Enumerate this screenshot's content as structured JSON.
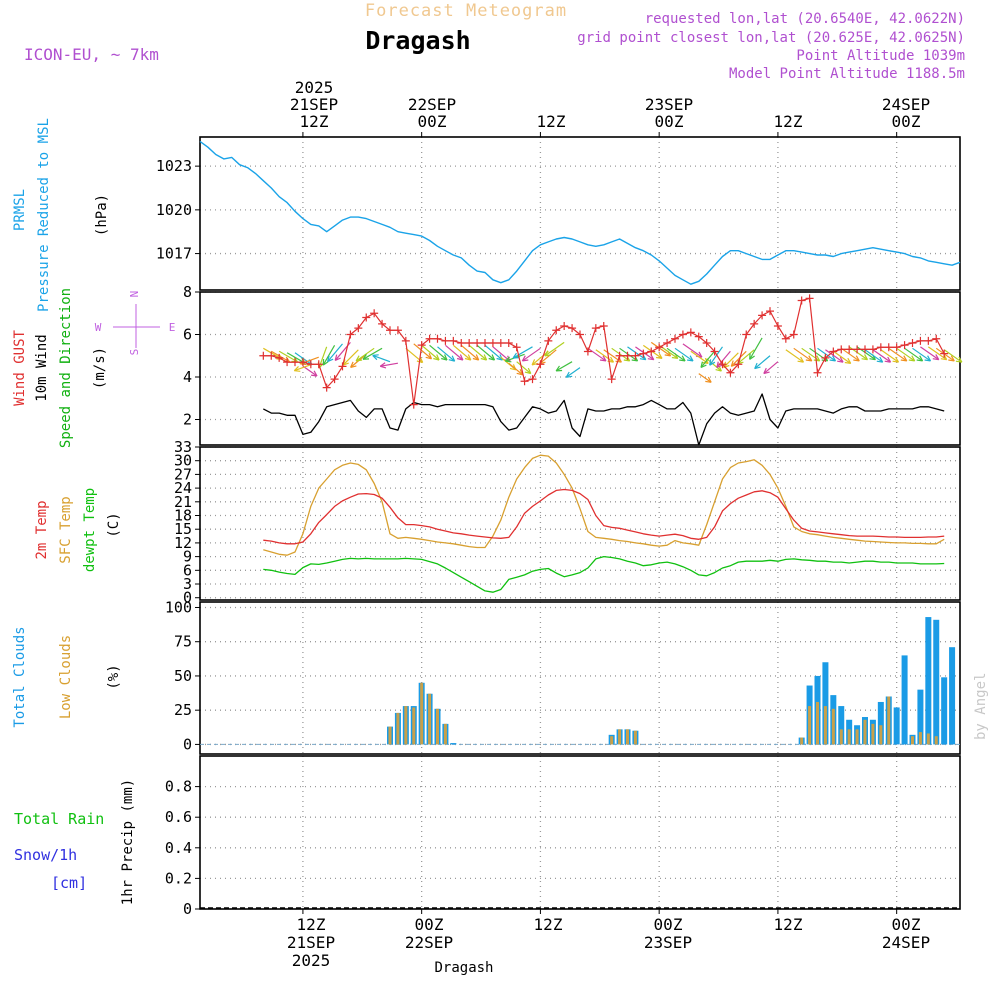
{
  "header": {
    "product": "Forecast Meteogram",
    "place": "Dragash",
    "model": "ICON-EU, ~ 7km",
    "requested": "requested lon,lat (20.6540E, 42.0622N)",
    "grid": "grid point closest lon,lat (20.625E, 42.0625N)",
    "point_alt": "Point Altitude 1039m",
    "model_alt": "Model Point Altitude 1188.5m",
    "watermark": "by Angel",
    "footer_place": "Dragash"
  },
  "colors": {
    "pressure": "#1aa3e8",
    "gust": "#e03030",
    "wind": "#000000",
    "wind_label": "#10b010",
    "temp2m": "#e03030",
    "sfc": "#d8a030",
    "dew": "#10c010",
    "cloud_total": "#1a9be6",
    "cloud_low": "#c8a04a",
    "rain": "#10c010",
    "snow": "#3030e0",
    "title": "#f0c890",
    "meta": "#b050d0",
    "compass": "#c060e0"
  },
  "chart_data": {
    "type": "line",
    "time_axis": {
      "unit": "hours since 2025-09-21 00Z",
      "range": [
        2,
        98
      ],
      "top_ticks": [
        {
          "hour": 15,
          "lines": [
            "2025",
            "21SEP",
            "12Z"
          ]
        },
        {
          "hour": 30,
          "lines": [
            "22SEP",
            "00Z"
          ]
        },
        {
          "hour": 45,
          "lines": [
            "12Z"
          ]
        },
        {
          "hour": 60,
          "lines": [
            "23SEP",
            "00Z"
          ]
        },
        {
          "hour": 75,
          "lines": [
            "12Z"
          ]
        },
        {
          "hour": 90,
          "lines": [
            "24SEP",
            "00Z"
          ]
        }
      ],
      "bottom_ticks": [
        {
          "hour": 15,
          "lines": [
            "12Z",
            "21SEP",
            "2025"
          ]
        },
        {
          "hour": 30,
          "lines": [
            "00Z",
            "22SEP"
          ]
        },
        {
          "hour": 45,
          "lines": [
            "12Z"
          ]
        },
        {
          "hour": 60,
          "lines": [
            "00Z",
            "23SEP"
          ]
        },
        {
          "hour": 75,
          "lines": [
            "12Z"
          ]
        },
        {
          "hour": 90,
          "lines": [
            "00Z",
            "24SEP"
          ]
        }
      ]
    },
    "pressure": {
      "labels": [
        "PRMSL",
        "Pressure Reduced to MSL"
      ],
      "unit": "(hPa)",
      "ylim": [
        1014.5,
        1025
      ],
      "yticks": [
        1017,
        1020,
        1023
      ],
      "hours": [
        2,
        3,
        4,
        5,
        6,
        7,
        8,
        9,
        10,
        11,
        12,
        13,
        14,
        15,
        16,
        17,
        18,
        19,
        20,
        21,
        22,
        23,
        24,
        25,
        26,
        27,
        28,
        29,
        30,
        31,
        32,
        33,
        34,
        35,
        36,
        37,
        38,
        39,
        40,
        41,
        42,
        43,
        44,
        45,
        46,
        47,
        48,
        49,
        50,
        51,
        52,
        53,
        54,
        55,
        56,
        57,
        58,
        59,
        60,
        61,
        62,
        63,
        64,
        65,
        66,
        67,
        68,
        69,
        70,
        71,
        72,
        73,
        74,
        75,
        76,
        77,
        78,
        79,
        80,
        81,
        82,
        83,
        84,
        85,
        86,
        87,
        88,
        89,
        90,
        91,
        92,
        93,
        94,
        95,
        96,
        97,
        98
      ],
      "values": [
        1024.7,
        1024.3,
        1023.8,
        1023.5,
        1023.6,
        1023.1,
        1022.9,
        1022.5,
        1022.0,
        1021.5,
        1020.9,
        1020.5,
        1019.9,
        1019.4,
        1019.0,
        1018.9,
        1018.5,
        1018.9,
        1019.3,
        1019.5,
        1019.5,
        1019.4,
        1019.2,
        1019.0,
        1018.8,
        1018.5,
        1018.4,
        1018.3,
        1018.2,
        1017.9,
        1017.5,
        1017.2,
        1016.9,
        1016.7,
        1016.2,
        1015.8,
        1015.7,
        1015.2,
        1015.0,
        1015.2,
        1015.8,
        1016.5,
        1017.2,
        1017.6,
        1017.8,
        1018.0,
        1018.1,
        1018.0,
        1017.8,
        1017.6,
        1017.5,
        1017.6,
        1017.8,
        1018.0,
        1017.7,
        1017.4,
        1017.2,
        1016.9,
        1016.5,
        1016.0,
        1015.5,
        1015.2,
        1014.9,
        1015.1,
        1015.6,
        1016.2,
        1016.8,
        1017.2,
        1017.2,
        1017.0,
        1016.8,
        1016.6,
        1016.6,
        1016.9,
        1017.2,
        1017.2,
        1017.1,
        1017.0,
        1016.9,
        1016.9,
        1016.8,
        1017.0,
        1017.1,
        1017.2,
        1017.3,
        1017.4,
        1017.3,
        1017.2,
        1017.1,
        1017.0,
        1016.8,
        1016.7,
        1016.5,
        1016.4,
        1016.3,
        1016.2,
        1016.4
      ]
    },
    "wind": {
      "labels": [
        "Wind GUST",
        "10m Wind",
        "Speed and Direction"
      ],
      "unit": "(m/s)",
      "ylim": [
        0.8,
        8
      ],
      "yticks": [
        2,
        4,
        6,
        8
      ],
      "compass": [
        "N",
        "W",
        "E",
        "S"
      ],
      "gust": [
        5.0,
        5.0,
        4.9,
        4.7,
        4.7,
        4.7,
        4.6,
        4.6,
        3.5,
        3.9,
        4.5,
        6.0,
        6.3,
        6.8,
        7.0,
        6.5,
        6.2,
        6.2,
        5.7,
        2.7,
        5.5,
        5.8,
        5.8,
        5.7,
        5.7,
        5.6,
        5.6,
        5.6,
        5.6,
        5.6,
        5.6,
        5.6,
        5.4,
        3.8,
        3.9,
        4.6,
        5.7,
        6.2,
        6.4,
        6.3,
        6.0,
        5.2,
        6.3,
        6.4,
        3.9,
        5.0,
        5.0,
        5.0,
        5.1,
        5.2,
        5.4,
        5.6,
        5.8,
        6.0,
        6.1,
        5.9,
        5.6,
        5.2,
        4.6,
        4.2,
        4.6,
        6.0,
        6.5,
        6.9,
        7.1,
        6.4,
        5.8,
        6.0,
        7.6,
        7.7,
        4.2,
        4.9,
        5.2,
        5.3,
        5.3,
        5.3,
        5.3,
        5.3,
        5.4,
        5.4,
        5.4,
        5.5,
        5.6,
        5.7,
        5.7,
        5.8,
        5.1
      ],
      "speed": [
        2.5,
        2.3,
        2.3,
        2.2,
        2.2,
        1.3,
        1.4,
        1.9,
        2.6,
        2.7,
        2.8,
        2.9,
        2.4,
        2.1,
        2.5,
        2.5,
        1.6,
        1.5,
        2.5,
        2.8,
        2.7,
        2.7,
        2.6,
        2.7,
        2.7,
        2.7,
        2.7,
        2.7,
        2.7,
        2.6,
        1.9,
        1.5,
        1.6,
        2.1,
        2.6,
        2.5,
        2.3,
        2.4,
        2.9,
        1.6,
        1.2,
        2.5,
        2.4,
        2.4,
        2.5,
        2.5,
        2.6,
        2.6,
        2.7,
        2.9,
        2.7,
        2.5,
        2.5,
        2.8,
        2.3,
        0.8,
        1.8,
        2.3,
        2.6,
        2.3,
        2.2,
        2.3,
        2.4,
        3.2,
        2.0,
        1.6,
        2.4,
        2.5,
        2.5,
        2.5,
        2.5,
        2.4,
        2.3,
        2.5,
        2.6,
        2.6,
        2.4,
        2.4,
        2.4,
        2.5,
        2.5,
        2.5,
        2.5,
        2.6,
        2.6,
        2.5,
        2.4
      ],
      "arrow_angle_deg": [
        -30,
        -30,
        -30,
        -30,
        -35,
        -35,
        200,
        200,
        250,
        240,
        230,
        230,
        225,
        220,
        215,
        210,
        160,
        190,
        -40,
        -40,
        -40,
        -40,
        -40,
        -40,
        -40,
        -40,
        -40,
        -40,
        -40,
        -40,
        -40,
        -40,
        -40,
        200,
        210,
        215,
        220,
        220,
        215,
        210,
        215,
        -35,
        -35,
        -35,
        -35,
        -35,
        -35,
        -35,
        -35,
        -35,
        -35,
        -35,
        -35,
        -35,
        -35,
        -35,
        -40,
        230,
        235,
        230,
        225,
        225,
        220,
        240,
        220,
        220,
        -35,
        -35,
        -35,
        -35,
        -35,
        -35,
        -35,
        -35,
        -35,
        -35,
        -35,
        -35,
        -35,
        -35,
        -35,
        -35,
        -35,
        -35,
        -35,
        -35,
        -35
      ]
    },
    "temperature": {
      "labels": [
        "2m Temp",
        "SFC Temp",
        "dewpt Temp"
      ],
      "unit": "(C)",
      "ylim": [
        -0.5,
        33
      ],
      "yticks": [
        0,
        3,
        6,
        9,
        12,
        15,
        18,
        21,
        24,
        27,
        30,
        33
      ],
      "t2m": [
        12.6,
        12.4,
        12.0,
        11.8,
        11.8,
        12.2,
        14.0,
        16.5,
        18.2,
        20.0,
        21.2,
        22.0,
        22.7,
        22.8,
        22.6,
        21.8,
        19.8,
        17.5,
        16.0,
        16.0,
        15.8,
        15.5,
        15.0,
        14.6,
        14.2,
        14.0,
        13.7,
        13.5,
        13.3,
        13.1,
        13.0,
        13.2,
        15.5,
        18.5,
        20.0,
        21.2,
        22.5,
        23.5,
        23.7,
        23.5,
        22.8,
        21.5,
        18.0,
        15.8,
        15.4,
        15.2,
        14.8,
        14.4,
        14.0,
        13.7,
        13.5,
        13.7,
        13.9,
        13.6,
        13.0,
        12.8,
        13.2,
        15.5,
        19.0,
        20.6,
        21.8,
        22.5,
        23.2,
        23.4,
        23.0,
        22.0,
        19.5,
        17.0,
        15.2,
        14.6,
        14.4,
        14.2,
        14.0,
        13.8,
        13.6,
        13.5,
        13.5,
        13.5,
        13.4,
        13.3,
        13.3,
        13.2,
        13.2,
        13.2,
        13.3,
        13.3,
        13.5
      ],
      "sfc": [
        10.5,
        10.0,
        9.5,
        9.3,
        10.0,
        14.0,
        20.0,
        24.0,
        26.0,
        28.0,
        29.0,
        29.5,
        29.2,
        28.0,
        25.0,
        21.0,
        14.0,
        13.0,
        13.2,
        13.0,
        12.8,
        12.5,
        12.2,
        12.0,
        11.8,
        11.5,
        11.2,
        11.0,
        11.0,
        13.5,
        17.0,
        22.0,
        26.0,
        28.5,
        30.5,
        31.2,
        31.0,
        29.5,
        27.0,
        24.0,
        19.5,
        14.5,
        13.2,
        13.0,
        12.8,
        12.5,
        12.3,
        12.0,
        11.8,
        11.5,
        11.3,
        11.5,
        12.5,
        12.0,
        11.8,
        11.5,
        16.0,
        21.0,
        26.0,
        28.5,
        29.5,
        29.8,
        30.2,
        29.0,
        27.0,
        24.0,
        20.0,
        15.5,
        14.5,
        14.0,
        13.8,
        13.5,
        13.2,
        13.0,
        12.8,
        12.6,
        12.4,
        12.3,
        12.2,
        12.1,
        12.0,
        12.0,
        11.9,
        11.9,
        11.8,
        11.8,
        12.8
      ],
      "dew": [
        6.2,
        6.0,
        5.6,
        5.3,
        5.1,
        6.6,
        7.4,
        7.3,
        7.6,
        8.0,
        8.4,
        8.6,
        8.5,
        8.6,
        8.5,
        8.5,
        8.5,
        8.5,
        8.6,
        8.5,
        8.4,
        7.9,
        7.4,
        6.5,
        5.5,
        4.5,
        3.5,
        2.5,
        1.5,
        1.2,
        1.8,
        4.0,
        4.5,
        5.0,
        5.8,
        6.2,
        6.4,
        5.4,
        4.6,
        5.0,
        5.5,
        6.5,
        8.5,
        9.0,
        8.8,
        8.5,
        8.0,
        7.6,
        7.0,
        7.2,
        7.6,
        7.8,
        7.4,
        6.8,
        6.0,
        5.0,
        4.8,
        5.5,
        6.5,
        7.0,
        7.8,
        8.0,
        8.0,
        8.0,
        8.2,
        8.0,
        8.4,
        8.5,
        8.3,
        8.2,
        8.0,
        8.0,
        7.8,
        7.8,
        7.6,
        7.8,
        8.0,
        8.0,
        7.8,
        7.8,
        7.6,
        7.6,
        7.6,
        7.4,
        7.4,
        7.4,
        7.5
      ]
    },
    "clouds": {
      "labels": [
        "Total Clouds",
        "Low Clouds"
      ],
      "unit": "(%)",
      "ylim": [
        -7,
        104
      ],
      "yticks": [
        0,
        25,
        50,
        75,
        100
      ],
      "total": [
        0,
        0,
        0,
        0,
        0,
        0,
        0,
        0,
        0,
        0,
        0,
        13,
        23,
        28,
        28,
        45,
        37,
        26,
        15,
        1,
        0,
        0,
        0,
        0,
        0,
        0,
        0,
        0,
        0,
        0,
        0,
        0,
        0,
        0,
        0,
        0,
        0,
        0,
        0,
        7,
        11,
        11,
        10,
        0,
        0,
        0,
        0,
        0,
        0,
        0,
        0,
        0,
        0,
        0,
        0,
        0,
        0,
        0,
        0,
        0,
        0,
        0,
        0,
        5,
        43,
        50,
        60,
        36,
        28,
        18,
        14,
        20,
        18,
        31,
        35,
        27,
        65,
        7,
        40,
        93,
        91,
        49,
        71
      ],
      "low": [
        0,
        0,
        0,
        0,
        0,
        0,
        0,
        0,
        0,
        0,
        0,
        13,
        23,
        28,
        27,
        45,
        37,
        26,
        15,
        0,
        0,
        0,
        0,
        0,
        0,
        0,
        0,
        0,
        0,
        0,
        0,
        0,
        0,
        0,
        0,
        0,
        0,
        0,
        0,
        6,
        11,
        11,
        10,
        0,
        0,
        0,
        0,
        0,
        0,
        0,
        0,
        0,
        0,
        0,
        0,
        0,
        0,
        0,
        0,
        0,
        0,
        0,
        0,
        5,
        28,
        31,
        28,
        26,
        11,
        11,
        11,
        18,
        15,
        14,
        35,
        0,
        0,
        6,
        9,
        8,
        6,
        0,
        0
      ]
    },
    "precip": {
      "labels_left": [
        "Total Rain",
        "Snow/1h",
        "[cm]"
      ],
      "label_axis": "1hr Precip (mm)",
      "ylim": [
        0,
        1
      ],
      "yticks": [
        "0",
        "0.2",
        "0.4",
        "0.6",
        "0.8"
      ],
      "rain": [
        0,
        0,
        0,
        0,
        0,
        0,
        0,
        0,
        0,
        0,
        0,
        0,
        0,
        0,
        0,
        0,
        0,
        0,
        0,
        0,
        0,
        0,
        0,
        0,
        0,
        0,
        0,
        0,
        0,
        0,
        0,
        0,
        0,
        0,
        0,
        0,
        0,
        0,
        0,
        0,
        0,
        0,
        0,
        0,
        0,
        0,
        0,
        0,
        0,
        0,
        0,
        0,
        0,
        0,
        0,
        0,
        0,
        0,
        0,
        0,
        0,
        0,
        0,
        0,
        0,
        0,
        0,
        0,
        0,
        0,
        0,
        0,
        0,
        0,
        0,
        0,
        0,
        0,
        0,
        0,
        0,
        0,
        0,
        0,
        0,
        0,
        0
      ]
    }
  }
}
